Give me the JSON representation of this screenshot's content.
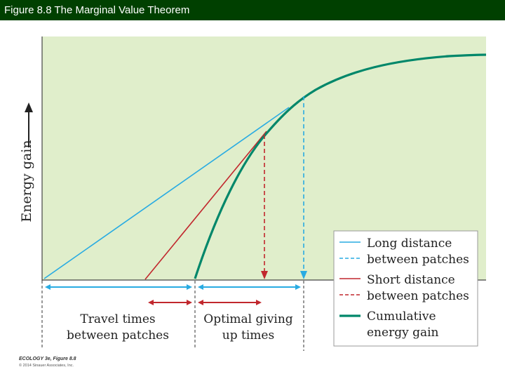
{
  "header": {
    "title": "Figure 8.8 The Marginal Value Theorem"
  },
  "diagram": {
    "y_axis_label": "Energy gain",
    "x_labels": {
      "travel_line1": "Travel times",
      "travel_line2": "between patches",
      "optimal_line1": "Optimal giving",
      "optimal_line2": "up times"
    },
    "legend": [
      {
        "line1": "Long distance",
        "line2": "between patches",
        "color": "#29abe2"
      },
      {
        "line1": "Short distance",
        "line2": "between patches",
        "color": "#c1272d"
      },
      {
        "line1": "Cumulative",
        "line2": "energy gain",
        "color": "#00876a"
      }
    ],
    "colors": {
      "background": "#e0eecb",
      "long": "#29abe2",
      "short": "#c1272d",
      "curve": "#00876a"
    }
  },
  "credit": {
    "line1": "ECOLOGY 3e, Figure 8.8",
    "line2": "© 2014 Sinauer Associates, Inc."
  }
}
